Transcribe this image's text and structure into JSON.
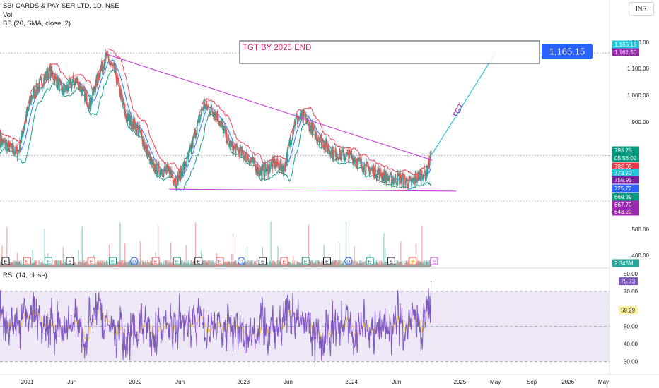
{
  "header": {
    "symbol_title": "SBI CARDS & PAY SER LTD, 1D, NSE",
    "volume_label": "Vol",
    "bb_label": "BB (20, SMA, close, 2)",
    "rsi_label": "RSI (14, close)",
    "currency": "INR"
  },
  "annotations": {
    "target_box": "TGT BY 2025 END",
    "target_callout": "1,165.15",
    "trend_label": "TGT"
  },
  "colors": {
    "candle_up": "#26a69a",
    "candle_down": "#ef5350",
    "bb_upper": "#f23645",
    "bb_lower": "#089981",
    "bb_basis": "#2962ff",
    "trendline": "#c73fd6",
    "target_line": "#22b9e0",
    "rsi_line": "#7e57c2",
    "rsi_ma": "#fbc02d",
    "rsi_band": "#ede7f6",
    "callout": "#2962ff",
    "target_text": "#d81b60"
  },
  "chart_data": [
    {
      "type": "candlestick",
      "title": "SBI CARDS & PAY SER LTD, 1D, NSE",
      "scale": "log",
      "x_tick_labels": [
        "2021",
        "Jun",
        "2022",
        "Jun",
        "2023",
        "Jun",
        "2024",
        "Jun",
        "2025",
        "May",
        "Sep",
        "2026",
        "May"
      ],
      "y_tick_labels": [
        "1,300.00",
        "1,100.00",
        "1,000.00",
        "900.00",
        "500.00",
        "400.00"
      ],
      "price_path": [
        {
          "date": "2020-10-01",
          "close": 840
        },
        {
          "date": "2020-12-01",
          "close": 800
        },
        {
          "date": "2021-01-15",
          "close": 990
        },
        {
          "date": "2021-03-20",
          "close": 1090
        },
        {
          "date": "2021-05-01",
          "close": 1010
        },
        {
          "date": "2021-06-15",
          "close": 1055
        },
        {
          "date": "2021-08-01",
          "close": 960
        },
        {
          "date": "2021-09-01",
          "close": 1080
        },
        {
          "date": "2021-09-25",
          "close": 1150
        },
        {
          "date": "2021-10-25",
          "close": 1080
        },
        {
          "date": "2021-12-01",
          "close": 920
        },
        {
          "date": "2022-01-15",
          "close": 870
        },
        {
          "date": "2022-03-01",
          "close": 760
        },
        {
          "date": "2022-05-01",
          "close": 745
        },
        {
          "date": "2022-05-20",
          "close": 720
        },
        {
          "date": "2022-07-01",
          "close": 790
        },
        {
          "date": "2022-08-20",
          "close": 960
        },
        {
          "date": "2022-10-01",
          "close": 930
        },
        {
          "date": "2022-11-20",
          "close": 820
        },
        {
          "date": "2023-01-15",
          "close": 790
        },
        {
          "date": "2023-03-01",
          "close": 745
        },
        {
          "date": "2023-04-15",
          "close": 770
        },
        {
          "date": "2023-05-20",
          "close": 760
        },
        {
          "date": "2023-06-25",
          "close": 905
        },
        {
          "date": "2023-07-25",
          "close": 920
        },
        {
          "date": "2023-09-01",
          "close": 860
        },
        {
          "date": "2023-11-01",
          "close": 800
        },
        {
          "date": "2024-01-01",
          "close": 790
        },
        {
          "date": "2024-02-15",
          "close": 760
        },
        {
          "date": "2024-04-01",
          "close": 745
        },
        {
          "date": "2024-05-15",
          "close": 725
        },
        {
          "date": "2024-06-15",
          "close": 730
        },
        {
          "date": "2024-07-20",
          "close": 715
        },
        {
          "date": "2024-08-20",
          "close": 740
        },
        {
          "date": "2024-09-10",
          "close": 745
        },
        {
          "date": "2024-09-26",
          "close": 793.75
        }
      ],
      "bollinger_bands": {
        "upper": 782.05,
        "basis": 755.95,
        "lower": 725.72
      },
      "trendlines": [
        {
          "name": "upper-trendline",
          "from": {
            "date": "2021-09-25",
            "price": 1160
          },
          "to": {
            "date": "2024-09-30",
            "price": 780
          }
        },
        {
          "name": "lower-trendline",
          "from": {
            "date": "2022-04-25",
            "price": 700
          },
          "to": {
            "date": "2024-12-20",
            "price": 695
          }
        },
        {
          "name": "target-projection",
          "from": {
            "date": "2024-09-26",
            "price": 793.75
          },
          "to": {
            "date": "2025-05-01",
            "price": 1165.15
          }
        }
      ],
      "target_value": 1165.15,
      "price_labels": [
        {
          "text": "1,165.15",
          "bg": "#26c6da"
        },
        {
          "text": "1,161.50",
          "bg": "#9c27b0"
        },
        {
          "text": "793.75",
          "bg": "#089981"
        },
        {
          "text": "05:58:02",
          "bg": "#089981"
        },
        {
          "text": "782.05",
          "bg": "#f23645"
        },
        {
          "text": "773.70",
          "bg": "#26c6da"
        },
        {
          "text": "755.95",
          "bg": "#7b1fa2"
        },
        {
          "text": "725.72",
          "bg": "#2962ff"
        },
        {
          "text": "669.39",
          "bg": "#089981"
        },
        {
          "text": "667.70",
          "bg": "#9c27b0"
        },
        {
          "text": "643.20",
          "bg": "#9c27b0"
        },
        {
          "text": "2.345M",
          "bg": "#26a69a"
        }
      ],
      "event_markers": [
        "E",
        "E",
        "E",
        "E",
        "E",
        "E",
        "D",
        "E",
        "E",
        "E",
        "E",
        "D",
        "E",
        "E",
        "E",
        "E",
        "D",
        "E",
        "E",
        "⚡",
        "E"
      ]
    },
    {
      "type": "line",
      "title": "RSI (14, close)",
      "y_tick_labels": [
        "80.00",
        "70.00",
        "50.00",
        "40.00",
        "30.00"
      ],
      "ylim": [
        27,
        82
      ],
      "reference_lines": [
        70,
        50,
        30
      ],
      "current_value": 75.73,
      "ma_value": 59.29
    }
  ]
}
